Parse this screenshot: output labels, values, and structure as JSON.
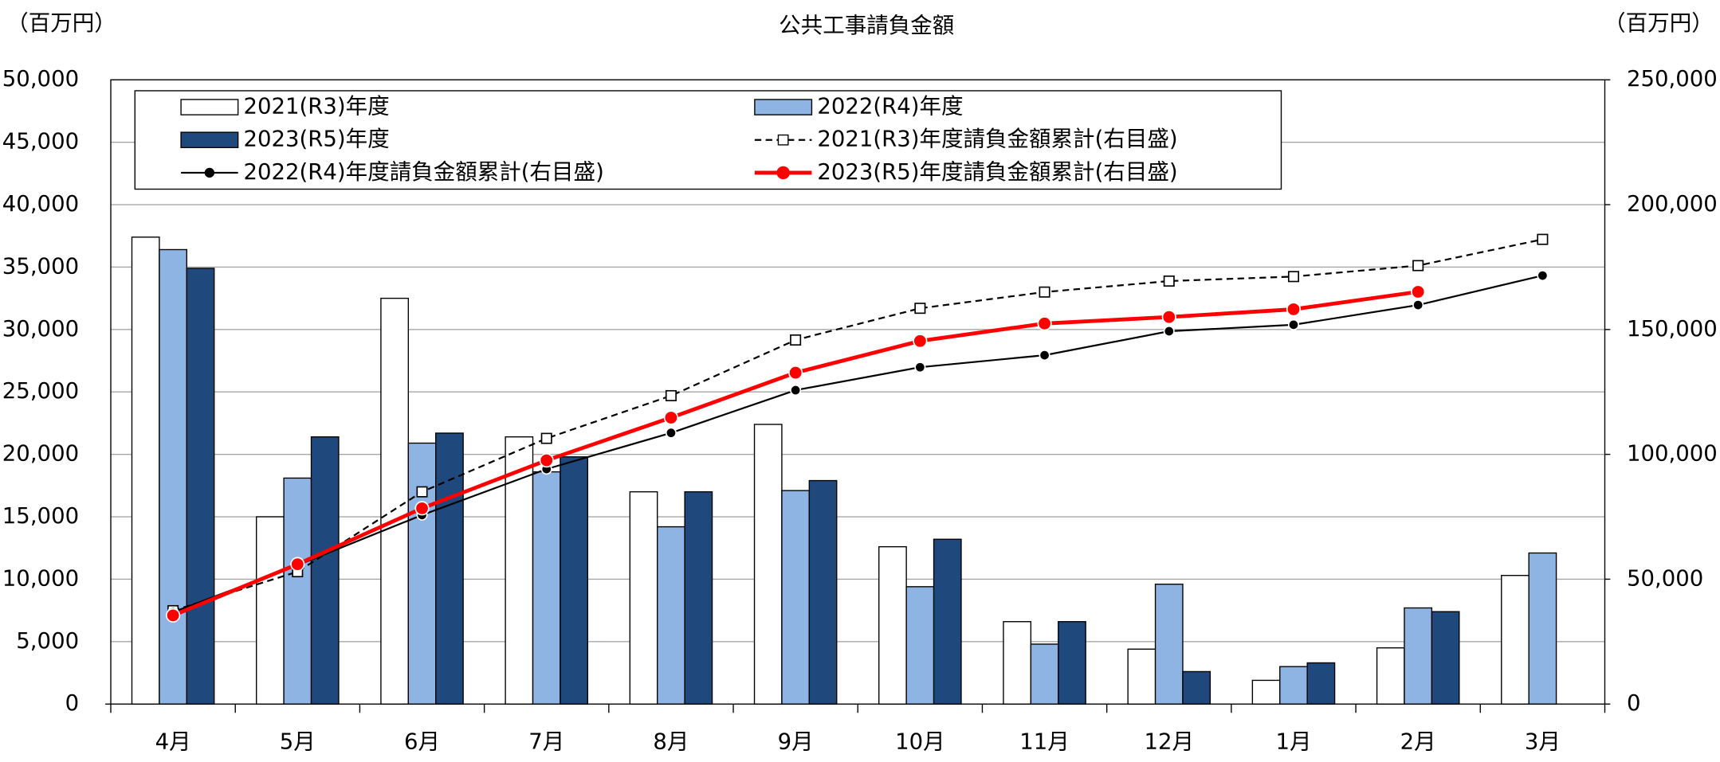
{
  "chart_data": {
    "type": "bar-line",
    "title": "公共工事請負金額",
    "y_label": "（百万円）",
    "y2_label": "（百万円）",
    "categories": [
      "4月",
      "5月",
      "6月",
      "7月",
      "8月",
      "9月",
      "10月",
      "11月",
      "12月",
      "1月",
      "2月",
      "3月"
    ],
    "ylim": [
      0,
      50000
    ],
    "yticks": [
      0,
      {
        "value": 5000,
        "label": "5,000"
      },
      {
        "value": 10000,
        "label": "10,000"
      },
      {
        "value": 15000,
        "label": "15,000"
      },
      {
        "value": 20000,
        "label": "20,000"
      },
      {
        "value": 25000,
        "label": "25,000"
      },
      {
        "value": 30000,
        "label": "30,000"
      },
      {
        "value": 35000,
        "label": "35,000"
      },
      {
        "value": 40000,
        "label": "40,000"
      },
      {
        "value": 45000,
        "label": "45,000"
      },
      {
        "value": 50000,
        "label": "50,000"
      }
    ],
    "y2lim": [
      0,
      250000
    ],
    "y2ticks": [
      0,
      {
        "value": 50000,
        "label": "50,000"
      },
      {
        "value": 100000,
        "label": "100,000"
      },
      {
        "value": 150000,
        "label": "150,000"
      },
      {
        "value": 200000,
        "label": "200,000"
      },
      {
        "value": 250000,
        "label": "250,000"
      }
    ],
    "grid": true,
    "series": [
      {
        "name": "2021(R3)年度",
        "type": "bar",
        "color": "#ffffff",
        "values": [
          37400,
          15000,
          32500,
          21400,
          17000,
          22400,
          12600,
          6600,
          4400,
          1900,
          4500,
          10300
        ]
      },
      {
        "name": "2022(R4)年度",
        "type": "bar",
        "color": "#8eb4e3",
        "values": [
          36400,
          18100,
          20900,
          18600,
          14200,
          17100,
          9400,
          4800,
          9600,
          3000,
          7700,
          12100
        ]
      },
      {
        "name": "2023(R5)年度",
        "type": "bar",
        "color": "#1f497d",
        "values": [
          34900,
          21400,
          21700,
          19800,
          17000,
          17900,
          13200,
          6600,
          2600,
          3300,
          7400,
          null
        ]
      },
      {
        "name": "2021(R3)年度請負金額累計(右目盛)",
        "type": "line",
        "axis": "y2",
        "color": "#000000",
        "dashed": true,
        "marker": "open-square",
        "values": [
          37400,
          53000,
          85000,
          106400,
          123500,
          145800,
          158500,
          165000,
          169400,
          171200,
          175600,
          186100
        ]
      },
      {
        "name": "2022(R4)年度請負金額累計(右目盛)",
        "type": "line",
        "axis": "y2",
        "color": "#000000",
        "dashed": false,
        "marker": "circle",
        "values": [
          36800,
          55600,
          75700,
          94100,
          108600,
          125700,
          134900,
          139700,
          149300,
          151900,
          159800,
          171600
        ]
      },
      {
        "name": "2023(R5)年度請負金額累計(右目盛)",
        "type": "line",
        "axis": "y2",
        "color": "#ff0000",
        "dashed": false,
        "marker": "circle",
        "thick": true,
        "values": [
          35500,
          56000,
          78400,
          97600,
          114700,
          132700,
          145400,
          152400,
          155000,
          158100,
          165100,
          null
        ]
      }
    ]
  }
}
